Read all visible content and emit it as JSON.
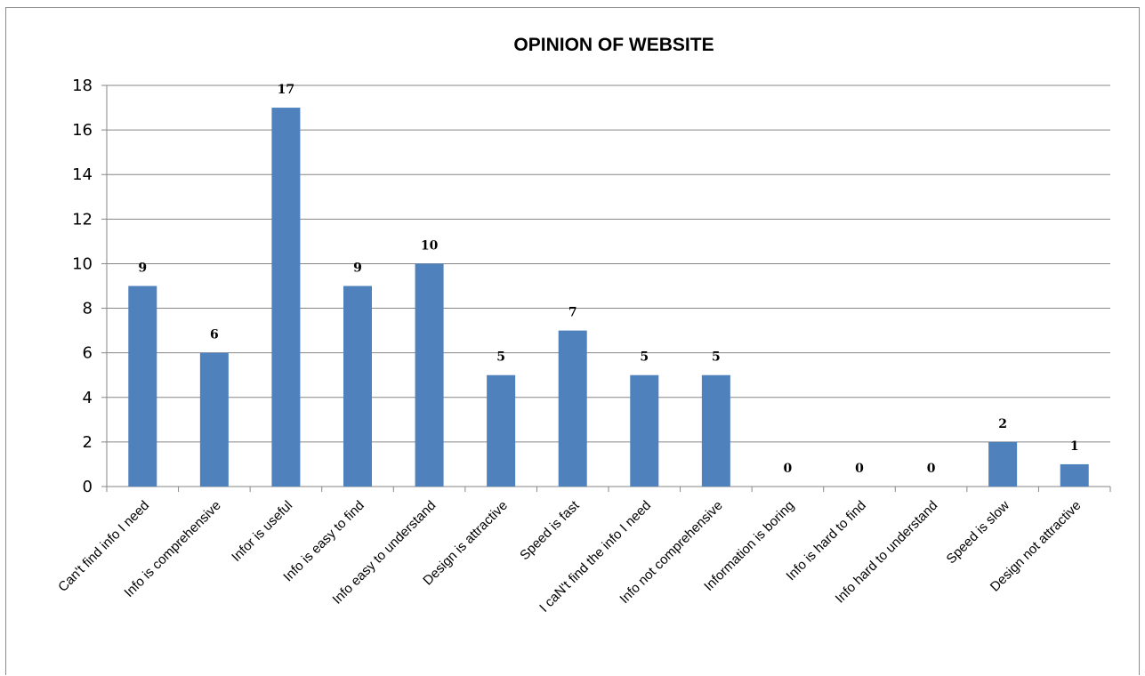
{
  "chart_data": {
    "type": "bar",
    "title": "OPINION OF WEBSITE",
    "xlabel": "",
    "ylabel": "",
    "categories": [
      "Can't find info I need",
      "Info is comprehensive",
      "Infor is useful",
      "Info is easy to find",
      "Info easy to understand",
      "Design is attractive",
      "Speed is  fast",
      "I caN't find the info I need",
      "Info not comprehensive",
      "Information is boring",
      "Info is hard to find",
      "Info hard to understand",
      "Speed is slow",
      "Design not attractive"
    ],
    "values": [
      9,
      6,
      17,
      9,
      10,
      5,
      7,
      5,
      5,
      0,
      0,
      0,
      2,
      1
    ],
    "ylim": [
      0,
      18
    ],
    "yticks": [
      0,
      2,
      4,
      6,
      8,
      10,
      12,
      14,
      16,
      18
    ],
    "grid": true,
    "legend": "none",
    "bar_color": "#4f81bd",
    "gridline_color": "#868686"
  }
}
